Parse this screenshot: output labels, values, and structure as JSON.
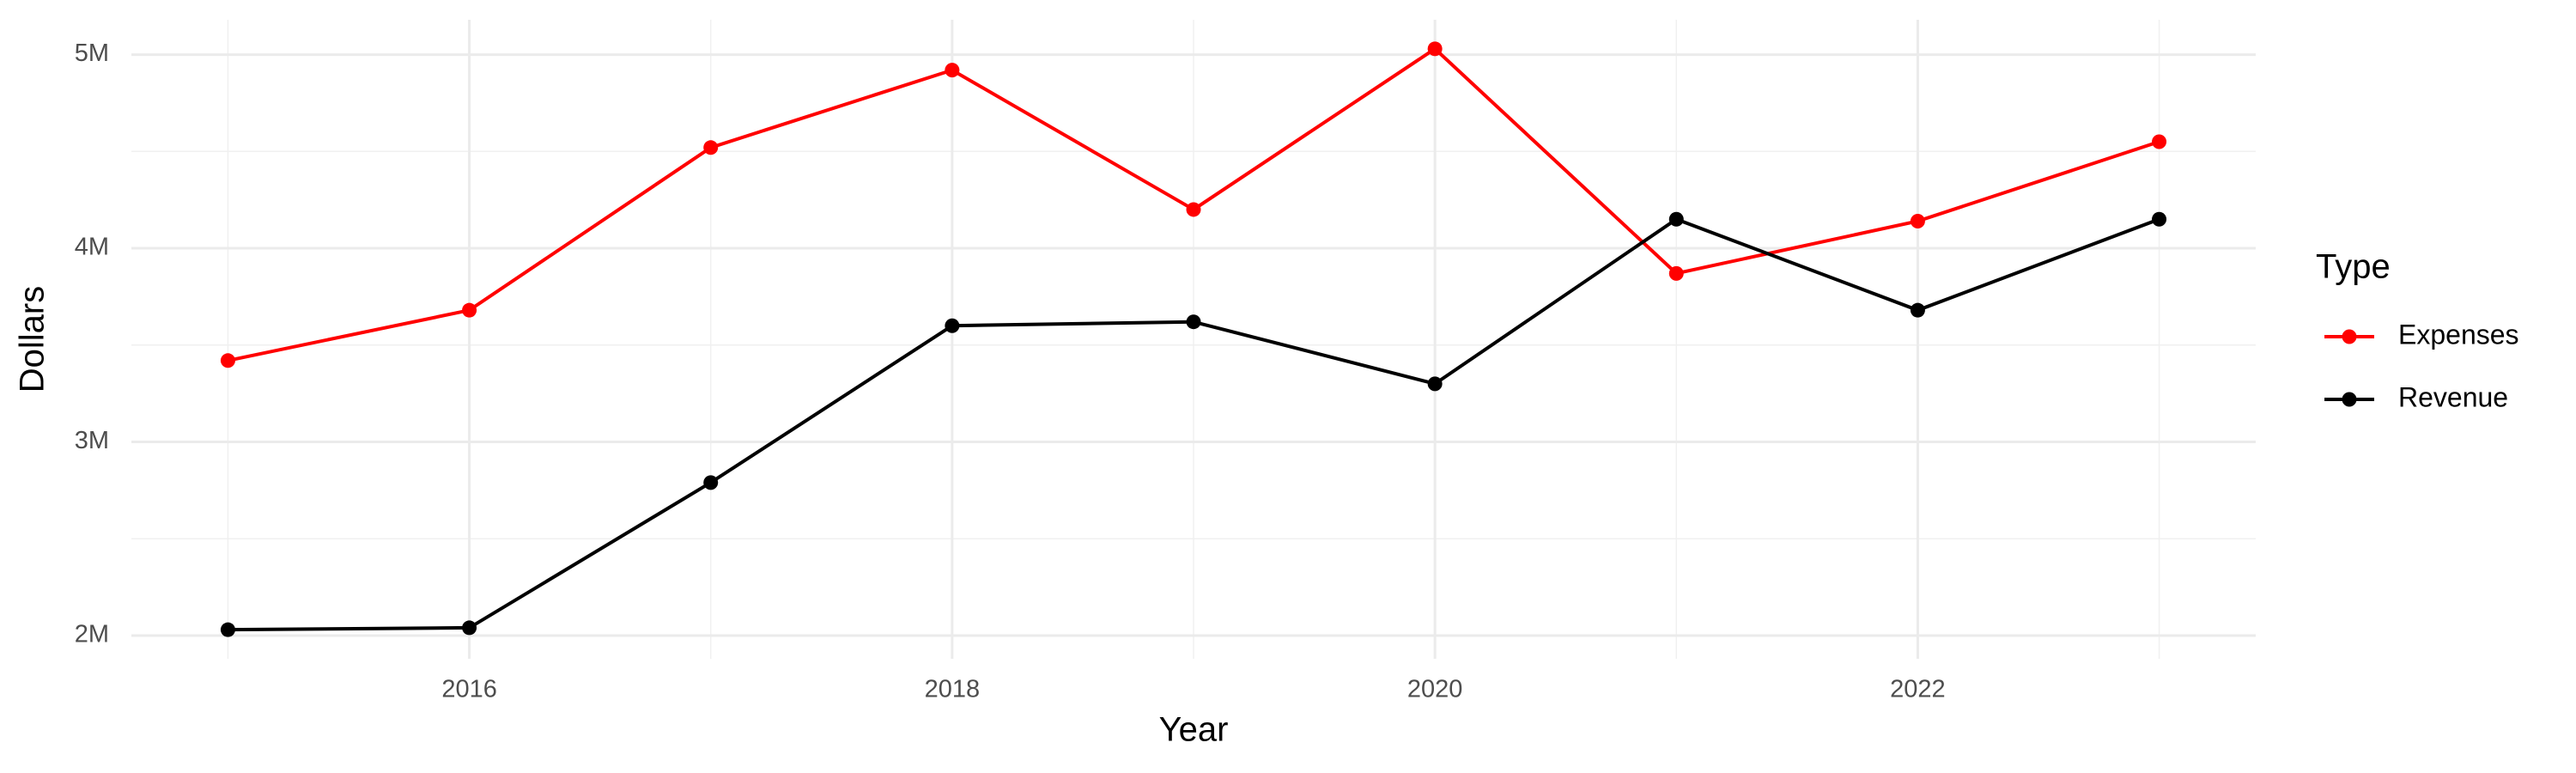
{
  "chart_data": {
    "type": "line",
    "x_label": "Year",
    "y_label": "Dollars",
    "legend_title": "Type",
    "x": [
      2015,
      2016,
      2017,
      2018,
      2019,
      2020,
      2021,
      2022,
      2023
    ],
    "series": [
      {
        "name": "Expenses",
        "color": "#ff0000",
        "values": [
          3420000,
          3680000,
          4520000,
          4920000,
          4200000,
          5030000,
          3870000,
          4140000,
          4550000
        ]
      },
      {
        "name": "Revenue",
        "color": "#000000",
        "values": [
          2030000,
          2040000,
          2790000,
          3600000,
          3620000,
          3300000,
          4150000,
          3680000,
          4150000
        ]
      }
    ],
    "xlim": [
      2014.6,
      2023.4
    ],
    "xticks": [
      2016,
      2018,
      2020,
      2022
    ],
    "ylim": [
      1880000,
      5180000
    ],
    "yticks": [
      {
        "value": 2000000,
        "label": "2M"
      },
      {
        "value": 3000000,
        "label": "3M"
      },
      {
        "value": 4000000,
        "label": "4M"
      },
      {
        "value": 5000000,
        "label": "5M"
      }
    ],
    "grid": true,
    "legend": "right"
  }
}
